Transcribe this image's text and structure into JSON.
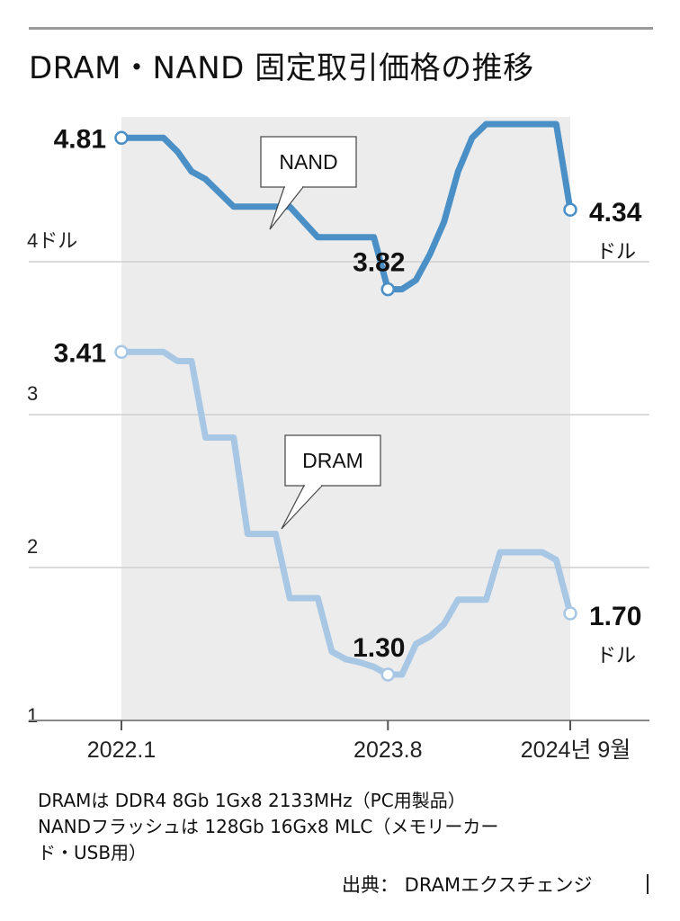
{
  "title": "DRAM・NAND 固定取引価格の推移",
  "notes": [
    "DRAMは DDR4 8Gb 1Gx8 2133MHz（PC用製品）",
    "NANDフラッシュは 128Gb 16Gx8 MLC（メモリーカー",
    "ド・USB用）"
  ],
  "source": "出典： DRAMエクスチェンジ",
  "colors": {
    "nand": "#4a90c6",
    "dram": "#a7c7e4",
    "shade": "#ececec",
    "grid": "#cfcfcf",
    "axis": "#8a8a8a"
  },
  "chart_data": {
    "type": "line",
    "title": "DRAM・NAND 固定取引価格の推移",
    "x_tick_labels": [
      "2022.1",
      "2023.8",
      "2024년 9월"
    ],
    "x_start": "2022-01",
    "y_tick_labels": [
      "1",
      "2",
      "3",
      "4ドル"
    ],
    "unit_label": "ドル",
    "ylim": [
      1,
      5
    ],
    "grid": true,
    "series": [
      {
        "name": "NAND",
        "x": [
          "2022-01",
          "2022-02",
          "2022-03",
          "2022-04",
          "2022-05",
          "2022-06",
          "2022-07",
          "2022-08",
          "2022-09",
          "2022-10",
          "2022-11",
          "2022-12",
          "2023-01",
          "2023-02",
          "2023-03",
          "2023-04",
          "2023-05",
          "2023-06",
          "2023-07",
          "2023-08",
          "2023-09",
          "2023-10",
          "2023-11",
          "2023-12",
          "2024-01",
          "2024-02",
          "2024-03",
          "2024-04",
          "2024-05",
          "2024-06",
          "2024-07",
          "2024-08",
          "2024-09"
        ],
        "values": [
          4.81,
          4.81,
          4.81,
          4.81,
          4.72,
          4.59,
          4.54,
          4.45,
          4.36,
          4.36,
          4.36,
          4.36,
          4.36,
          4.26,
          4.16,
          4.16,
          4.16,
          4.16,
          4.16,
          3.82,
          3.82,
          3.88,
          4.05,
          4.26,
          4.59,
          4.81,
          4.9,
          4.9,
          4.9,
          4.9,
          4.9,
          4.9,
          4.34
        ],
        "start_label": "4.81",
        "mid_label": "3.82",
        "end_label": "4.34",
        "end_unit": "ドル"
      },
      {
        "name": "DRAM",
        "x": [
          "2022-01",
          "2022-02",
          "2022-03",
          "2022-04",
          "2022-05",
          "2022-06",
          "2022-07",
          "2022-08",
          "2022-09",
          "2022-10",
          "2022-11",
          "2022-12",
          "2023-01",
          "2023-02",
          "2023-03",
          "2023-04",
          "2023-05",
          "2023-06",
          "2023-07",
          "2023-08",
          "2023-09",
          "2023-10",
          "2023-11",
          "2023-12",
          "2024-01",
          "2024-02",
          "2024-03",
          "2024-04",
          "2024-05",
          "2024-06",
          "2024-07",
          "2024-08",
          "2024-09"
        ],
        "values": [
          3.41,
          3.41,
          3.41,
          3.41,
          3.35,
          3.35,
          2.85,
          2.85,
          2.85,
          2.22,
          2.22,
          2.22,
          1.8,
          1.8,
          1.8,
          1.45,
          1.4,
          1.38,
          1.35,
          1.3,
          1.3,
          1.5,
          1.55,
          1.63,
          1.79,
          1.79,
          1.79,
          2.1,
          2.1,
          2.1,
          2.1,
          2.05,
          1.7
        ],
        "start_label": "3.41",
        "mid_label": "1.30",
        "end_label": "1.70",
        "end_unit": "ドル"
      }
    ]
  }
}
